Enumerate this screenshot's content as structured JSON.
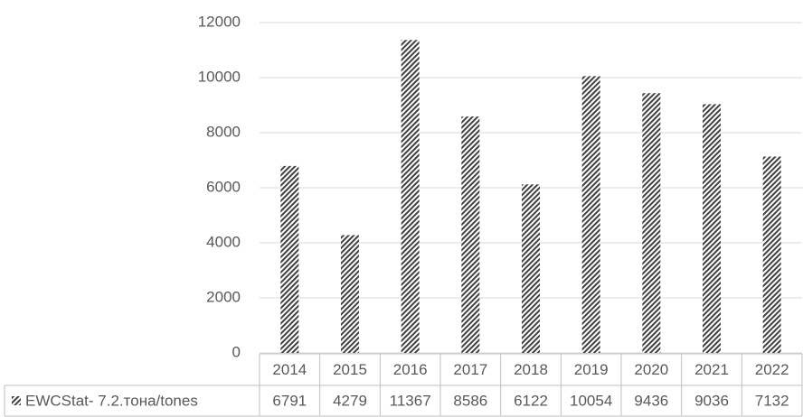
{
  "chart_data": {
    "type": "bar",
    "categories": [
      "2014",
      "2015",
      "2016",
      "2017",
      "2018",
      "2019",
      "2020",
      "2021",
      "2022"
    ],
    "series": [
      {
        "name": "EWCStat- 7.2.тона/tones",
        "color": "#404040",
        "values": [
          6791,
          4279,
          11367,
          8586,
          6122,
          10054,
          9436,
          9036,
          7132
        ]
      }
    ],
    "ylim": [
      0,
      12000
    ],
    "yticks": [
      0,
      2000,
      4000,
      6000,
      8000,
      10000,
      12000
    ],
    "grid": true
  }
}
